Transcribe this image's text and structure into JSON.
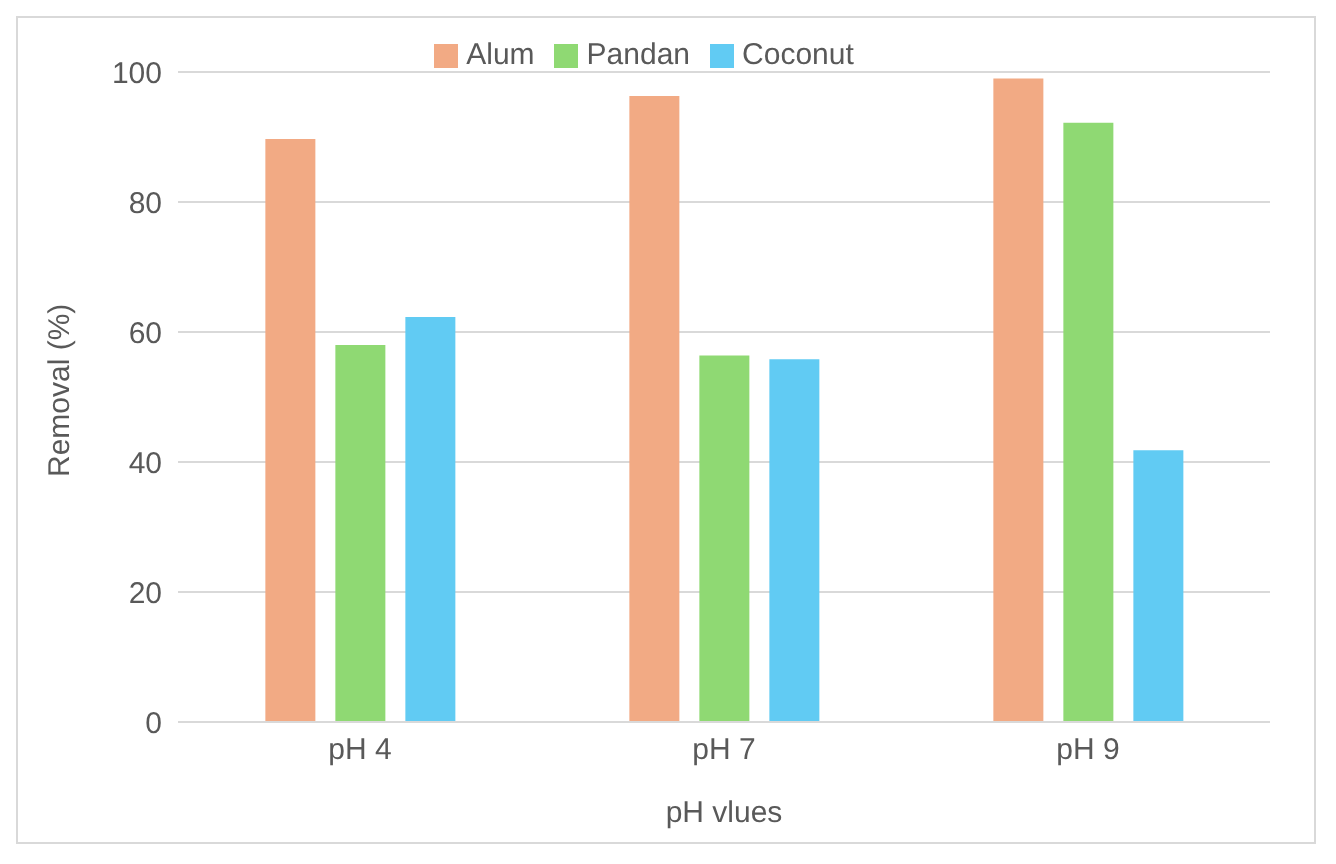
{
  "chart_data": {
    "type": "bar",
    "xlabel": "pH vlues",
    "ylabel": "Removal (%)",
    "categories": [
      "pH 4",
      "pH 7",
      "pH 9"
    ],
    "series": [
      {
        "name": "Alum",
        "color": "#f2aa84",
        "values": [
          89.7,
          96.3,
          99.0
        ]
      },
      {
        "name": "Pandan",
        "color": "#8fd973",
        "values": [
          58.0,
          56.4,
          92.2
        ]
      },
      {
        "name": "Coconut",
        "color": "#61cbf3",
        "values": [
          62.3,
          55.8,
          41.8
        ]
      }
    ],
    "ylim": [
      0,
      100
    ],
    "yticks": [
      0,
      20,
      40,
      60,
      80,
      100
    ],
    "grid": "y",
    "legend": "top"
  }
}
